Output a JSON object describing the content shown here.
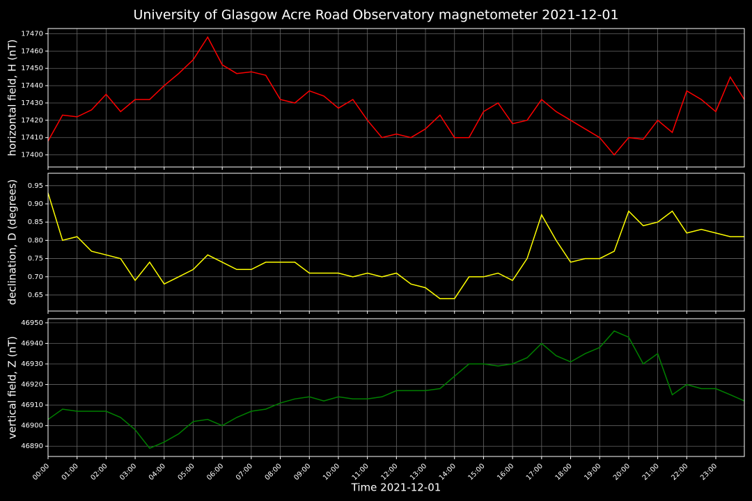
{
  "title": "University of Glasgow Acre Road Observatory magnetometer 2021-12-01",
  "xlabel": "Time 2021-12-01",
  "xlim": [
    "00:00",
    "23:59"
  ],
  "xticks": [
    "00:00",
    "01:00",
    "02:00",
    "03:00",
    "04:00",
    "05:00",
    "06:00",
    "07:00",
    "08:00",
    "09:00",
    "10:00",
    "11:00",
    "12:00",
    "13:00",
    "14:00",
    "15:00",
    "16:00",
    "17:00",
    "18:00",
    "19:00",
    "20:00",
    "21:00",
    "22:00",
    "23:00"
  ],
  "grid": true,
  "x": [
    "00:00",
    "00:30",
    "01:00",
    "01:30",
    "02:00",
    "02:30",
    "03:00",
    "03:30",
    "04:00",
    "04:30",
    "05:00",
    "05:30",
    "06:00",
    "06:30",
    "07:00",
    "07:30",
    "08:00",
    "08:30",
    "09:00",
    "09:30",
    "10:00",
    "10:30",
    "11:00",
    "11:30",
    "12:00",
    "12:30",
    "13:00",
    "13:30",
    "14:00",
    "14:30",
    "15:00",
    "15:30",
    "16:00",
    "16:30",
    "17:00",
    "17:30",
    "18:00",
    "18:30",
    "19:00",
    "19:30",
    "20:00",
    "20:30",
    "21:00",
    "21:30",
    "22:00",
    "22:30",
    "23:00",
    "23:30",
    "23:59"
  ],
  "chart_data": [
    {
      "type": "line",
      "ylabel": "horizontal field, H (nT)",
      "ylim": [
        17393,
        17473
      ],
      "yticks": [
        17400,
        17410,
        17420,
        17430,
        17440,
        17450,
        17460,
        17470
      ],
      "series": [
        {
          "color": "#ff0000",
          "values": [
            17408,
            17423,
            17422,
            17426,
            17435,
            17425,
            17432,
            17432,
            17440,
            17447,
            17455,
            17468,
            17452,
            17447,
            17448,
            17446,
            17432,
            17430,
            17437,
            17434,
            17427,
            17432,
            17420,
            17410,
            17412,
            17410,
            17415,
            17423,
            17410,
            17410,
            17425,
            17430,
            17418,
            17420,
            17432,
            17425,
            17420,
            17415,
            17410,
            17400,
            17410,
            17409,
            17420,
            17413,
            17437,
            17432,
            17425,
            17445,
            17432
          ]
        }
      ]
    },
    {
      "type": "line",
      "ylabel": "declination, D (degrees)",
      "ylim": [
        0.606,
        0.984
      ],
      "yticks": [
        0.65,
        {
          "value": 0.7,
          "label": "0.70"
        },
        0.75,
        {
          "value": 0.8,
          "label": "0.80"
        },
        0.85,
        {
          "value": 0.9,
          "label": "0.90"
        },
        0.95
      ],
      "series": [
        {
          "color": "#ffff00",
          "values": [
            0.93,
            0.8,
            0.81,
            0.77,
            0.76,
            0.75,
            0.69,
            0.74,
            0.68,
            0.7,
            0.72,
            0.76,
            0.74,
            0.72,
            0.72,
            0.74,
            0.74,
            0.74,
            0.71,
            0.71,
            0.71,
            0.7,
            0.71,
            0.7,
            0.71,
            0.68,
            0.67,
            0.64,
            0.64,
            0.7,
            0.7,
            0.71,
            0.69,
            0.75,
            0.87,
            0.8,
            0.74,
            0.75,
            0.75,
            0.77,
            0.88,
            0.84,
            0.85,
            0.88,
            0.82,
            0.83,
            0.82,
            0.81,
            0.81
          ]
        }
      ]
    },
    {
      "type": "line",
      "ylabel": "vertical field, Z (nT)",
      "ylim": [
        46885,
        46952
      ],
      "yticks": [
        46890,
        46900,
        46910,
        46920,
        46930,
        46940,
        46950
      ],
      "series": [
        {
          "color": "#008000",
          "values": [
            46903,
            46908,
            46907,
            46907,
            46907,
            46904,
            46898,
            46889,
            46892,
            46896,
            46902,
            46903,
            46900,
            46904,
            46907,
            46908,
            46911,
            46913,
            46914,
            46912,
            46914,
            46913,
            46913,
            46914,
            46917,
            46917,
            46917,
            46918,
            46924,
            46930,
            46930,
            46929,
            46930,
            46933,
            46940,
            46934,
            46931,
            46935,
            46938,
            46946,
            46943,
            46930,
            46935,
            46915,
            46920,
            46918,
            46918,
            46915,
            46912
          ]
        }
      ]
    }
  ]
}
